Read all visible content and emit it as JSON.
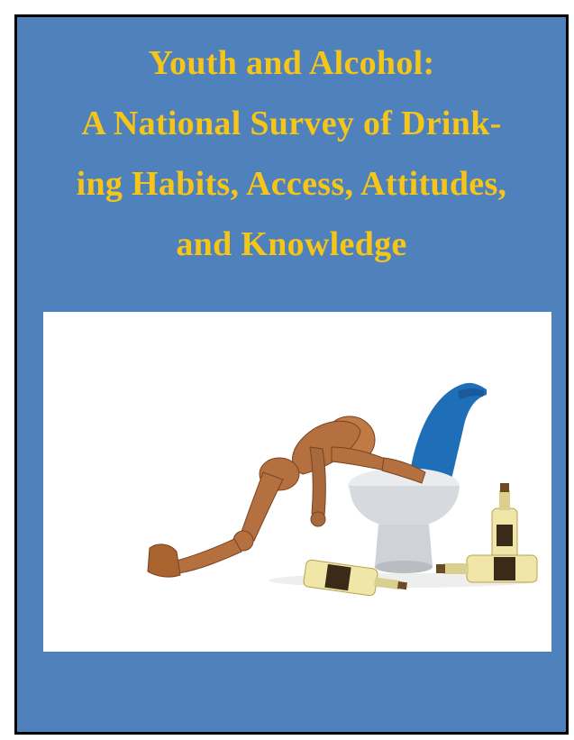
{
  "cover": {
    "title_lines": [
      "Youth and Alcohol:",
      "A National Survey of Drink-",
      "ing Habits, Access, Attitudes,",
      "and Knowledge"
    ],
    "colors": {
      "background": "#4f81bd",
      "title": "#f5c518",
      "border": "#000000"
    },
    "illustration": "wooden-mannequin-vomiting-into-toilet-icon"
  }
}
